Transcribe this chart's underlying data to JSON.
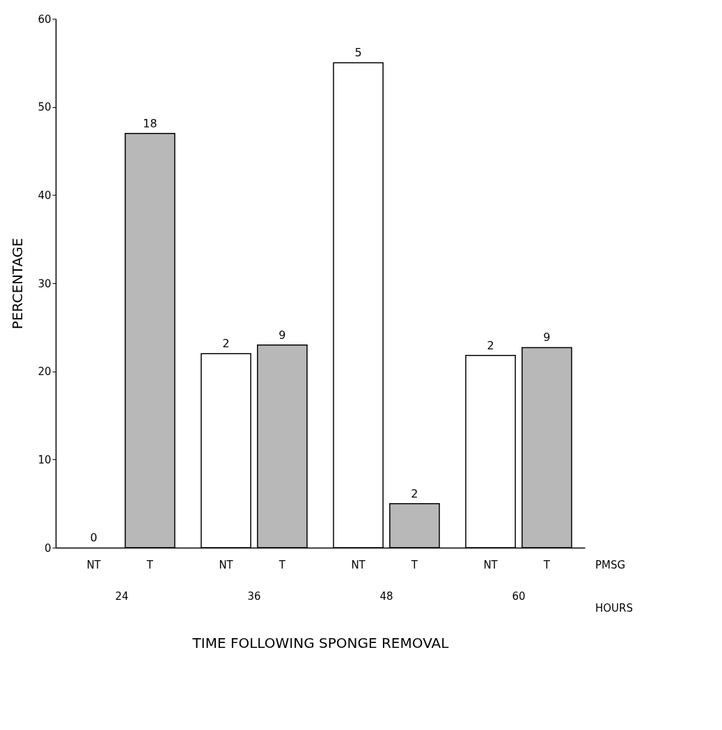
{
  "chart_data": {
    "type": "bar",
    "ylabel": "PERCENTAGE",
    "xlabel": "TIME FOLLOWING SPONGE REMOVAL",
    "categories": [
      "24",
      "36",
      "48",
      "60"
    ],
    "series": [
      {
        "name": "NT",
        "color": "#ffffff",
        "values": [
          0,
          22,
          55,
          21.8
        ]
      },
      {
        "name": "T",
        "color": "#b8b8b8",
        "values": [
          47,
          23,
          5,
          22.7
        ]
      }
    ],
    "annotations": [
      {
        "text": "0",
        "x": "24",
        "y": 0
      },
      {
        "text": "18",
        "x": "24",
        "y": 47
      },
      {
        "text": "2",
        "x": "36",
        "y": 22
      },
      {
        "text": "9",
        "x": "36",
        "y": 23
      },
      {
        "text": "5",
        "x": "48",
        "y": 55
      },
      {
        "text": "2",
        "x": "48",
        "y": 5
      },
      {
        "text": "2",
        "x": "60",
        "y": 21.8
      },
      {
        "text": "9",
        "x": "60",
        "y": 22.7
      },
      "PMSG",
      "HOURS"
    ],
    "ylim": [
      0,
      60
    ],
    "yticks": [
      0,
      10,
      20,
      30,
      40,
      50,
      60
    ],
    "grid": false
  }
}
